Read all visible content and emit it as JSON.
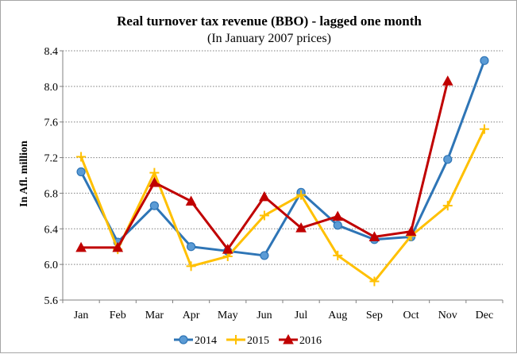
{
  "chart_data": {
    "type": "line",
    "title": "Real turnover tax revenue (BBO) - lagged one month",
    "subtitle": "(In January 2007 prices)",
    "xlabel": "",
    "ylabel": "In Afl. million",
    "categories": [
      "Jan",
      "Feb",
      "Mar",
      "Apr",
      "May",
      "Jun",
      "Jul",
      "Aug",
      "Sep",
      "Oct",
      "Nov",
      "Dec"
    ],
    "ylim": [
      5.6,
      8.4
    ],
    "yticks": [
      5.6,
      6.0,
      6.4,
      6.8,
      7.2,
      7.6,
      8.0,
      8.4
    ],
    "ytick_labels": [
      "5.6",
      "6.0",
      "6.4",
      "6.8",
      "7.2",
      "7.6",
      "8.0",
      "8.4"
    ],
    "grid": true,
    "legend": "bottom",
    "series": [
      {
        "name": "2014",
        "color": "#2e75b6",
        "marker": "circle",
        "values": [
          7.04,
          6.25,
          6.66,
          6.2,
          6.15,
          6.1,
          6.81,
          6.44,
          6.28,
          6.31,
          7.18,
          8.29
        ]
      },
      {
        "name": "2015",
        "color": "#ffc000",
        "marker": "plus",
        "values": [
          7.21,
          6.17,
          7.03,
          5.98,
          6.09,
          6.55,
          6.78,
          6.1,
          5.81,
          6.32,
          6.66,
          7.52
        ]
      },
      {
        "name": "2016",
        "color": "#c00000",
        "marker": "triangle",
        "values": [
          6.19,
          6.19,
          6.92,
          6.71,
          6.17,
          6.76,
          6.41,
          6.54,
          6.31,
          6.37,
          8.06,
          null
        ]
      }
    ]
  }
}
